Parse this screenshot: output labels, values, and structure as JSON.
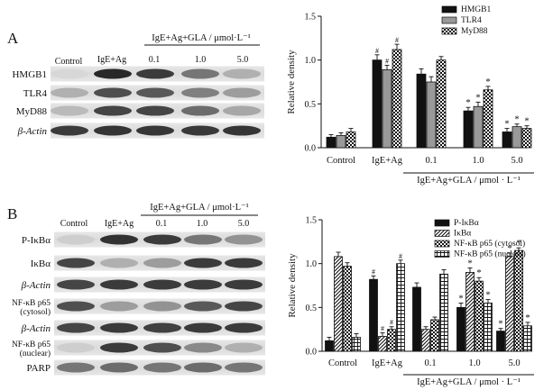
{
  "panels": [
    {
      "letter": "A",
      "blot": {
        "group_label": "IgE+Ag+GLA / μmol·L⁻¹",
        "lanes": [
          "Control",
          "IgE+Ag",
          "0.1",
          "1.0",
          "5.0"
        ],
        "rows": [
          "HMGB1",
          "TLR4",
          "MyD88",
          "β-Actin"
        ]
      },
      "chart_data": {
        "type": "bar",
        "ylabel": "Relative density",
        "ylim": [
          0,
          1.5
        ],
        "yticks": [
          0,
          0.5,
          1.0,
          1.5
        ],
        "categories": [
          "Control",
          "IgE+Ag",
          "0.1",
          "1.0",
          "5.0"
        ],
        "group_label": "IgE+Ag+GLA / μmol · L⁻¹",
        "legend_position": "top-right",
        "series": [
          {
            "name": "HMGB1",
            "pattern": "solid",
            "values": [
              0.12,
              1.0,
              0.84,
              0.42,
              0.18
            ],
            "errors": [
              0.03,
              0.06,
              0.06,
              0.04,
              0.04
            ],
            "marks": [
              "",
              "#",
              "",
              "*",
              "*"
            ]
          },
          {
            "name": "TLR4",
            "pattern": "gray",
            "values": [
              0.14,
              0.89,
              0.75,
              0.47,
              0.24
            ],
            "errors": [
              0.03,
              0.05,
              0.06,
              0.05,
              0.03
            ],
            "marks": [
              "",
              "#",
              "",
              "*",
              "*"
            ]
          },
          {
            "name": "MyD88",
            "pattern": "check",
            "values": [
              0.18,
              1.12,
              1.0,
              0.66,
              0.22
            ],
            "errors": [
              0.04,
              0.06,
              0.04,
              0.04,
              0.03
            ],
            "marks": [
              "",
              "#",
              "",
              "*",
              "*"
            ]
          }
        ]
      }
    },
    {
      "letter": "B",
      "blot": {
        "group_label": "IgE+Ag+GLA / μmol·L⁻¹",
        "lanes": [
          "Control",
          "IgE+Ag",
          "0.1",
          "1.0",
          "5.0"
        ],
        "rows": [
          "P-IκBα",
          "IκBα",
          "β-Actin",
          "NF-κB p65\n(cytosol)",
          "β-Actin",
          "NF-κB p65\n(nuclear)",
          "PARP"
        ]
      },
      "chart_data": {
        "type": "bar",
        "ylabel": "Relative density",
        "ylim": [
          0,
          1.5
        ],
        "yticks": [
          0,
          0.5,
          1.0,
          1.5
        ],
        "categories": [
          "Control",
          "IgE+Ag",
          "0.1",
          "1.0",
          "5.0"
        ],
        "group_label": "IgE+Ag+GLA / μmol · L⁻¹",
        "legend_position": "top-right",
        "series": [
          {
            "name": "P-IκBα",
            "pattern": "solid",
            "values": [
              0.12,
              0.82,
              0.73,
              0.5,
              0.23
            ],
            "errors": [
              0.04,
              0.04,
              0.05,
              0.05,
              0.03
            ],
            "marks": [
              "",
              "#",
              "",
              "*",
              "*"
            ]
          },
          {
            "name": "IκBα",
            "pattern": "diag",
            "values": [
              1.08,
              0.17,
              0.25,
              0.9,
              1.08
            ],
            "errors": [
              0.05,
              0.04,
              0.03,
              0.05,
              0.04
            ],
            "marks": [
              "",
              "#",
              "",
              "*",
              "*"
            ]
          },
          {
            "name": "NF-κB p65 (cytosol)",
            "pattern": "check",
            "values": [
              0.97,
              0.25,
              0.36,
              0.8,
              1.15
            ],
            "errors": [
              0.04,
              0.03,
              0.03,
              0.04,
              0.03
            ],
            "marks": [
              "",
              "#",
              "",
              "*",
              "*"
            ]
          },
          {
            "name": "NF-κB p65 (nuclear)",
            "pattern": "hgrid",
            "values": [
              0.16,
              1.0,
              0.88,
              0.55,
              0.29
            ],
            "errors": [
              0.04,
              0.04,
              0.05,
              0.04,
              0.04
            ],
            "marks": [
              "",
              "#",
              "",
              "*",
              "*"
            ]
          }
        ]
      }
    }
  ]
}
